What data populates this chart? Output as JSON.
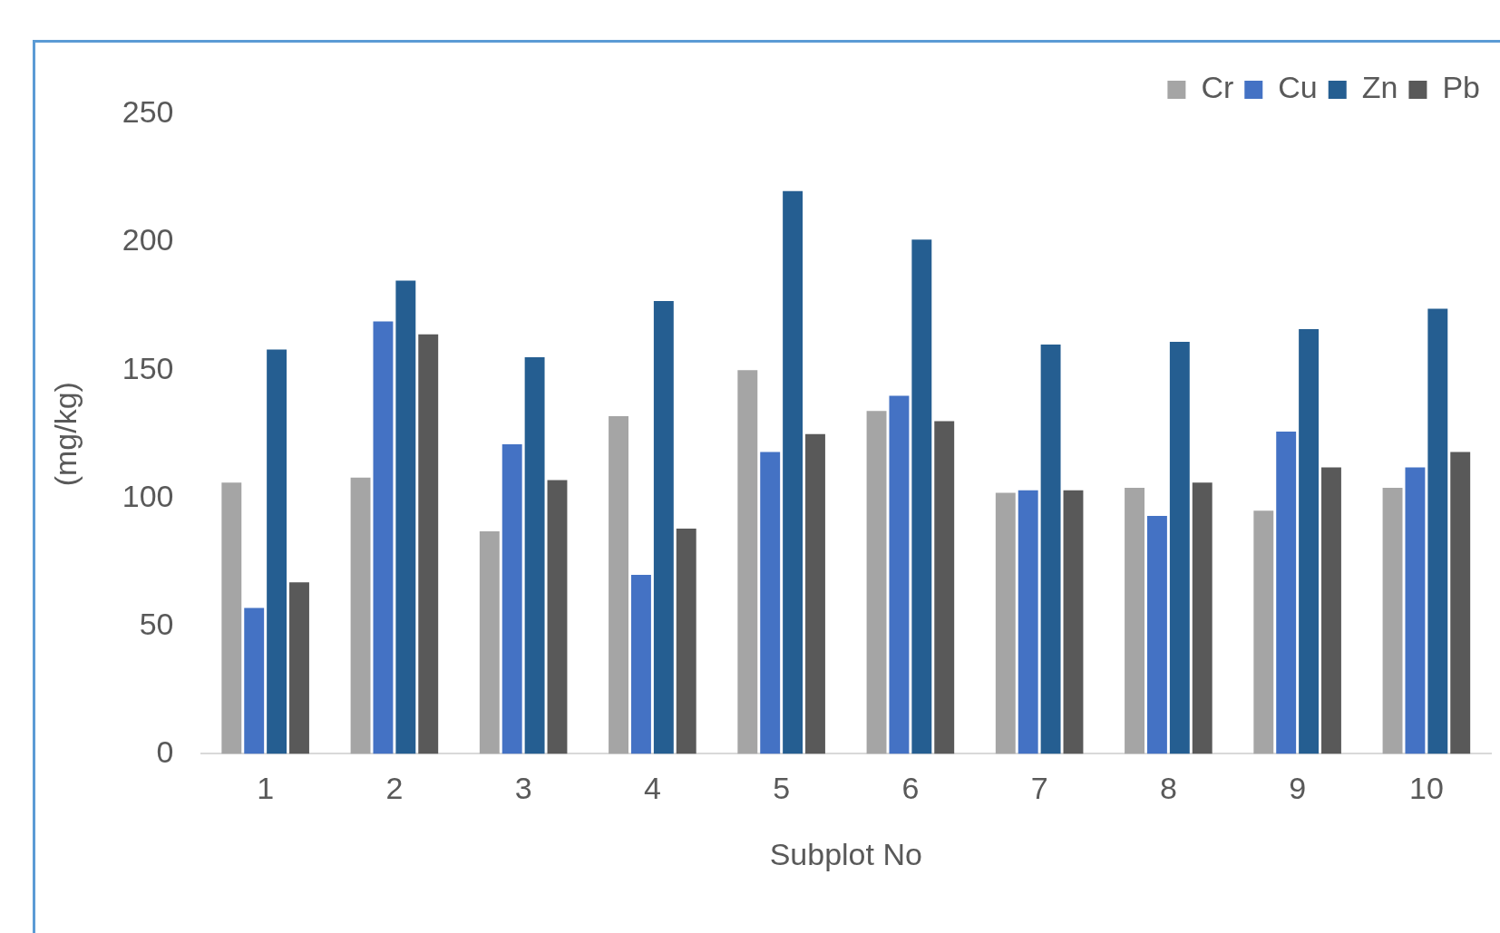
{
  "chart_data": {
    "type": "bar",
    "xlabel": "Subplot No",
    "ylabel": "(mg/kg)",
    "categories": [
      "1",
      "2",
      "3",
      "4",
      "5",
      "6",
      "7",
      "8",
      "9",
      "10"
    ],
    "series": [
      {
        "name": "Cr",
        "color": "#a5a5a5",
        "values": [
          106,
          108,
          87,
          132,
          150,
          134,
          102,
          104,
          95,
          104
        ]
      },
      {
        "name": "Cu",
        "color": "#4472c4",
        "values": [
          57,
          169,
          121,
          70,
          118,
          140,
          103,
          93,
          126,
          112
        ]
      },
      {
        "name": "Zn",
        "color": "#255e91",
        "values": [
          158,
          185,
          155,
          177,
          220,
          201,
          160,
          161,
          166,
          174
        ]
      },
      {
        "name": "Pb",
        "color": "#595959",
        "values": [
          67,
          164,
          107,
          88,
          125,
          130,
          103,
          106,
          112,
          118
        ]
      }
    ],
    "ylim": [
      0,
      250
    ],
    "yticks": [
      0,
      50,
      100,
      150,
      200,
      250
    ],
    "grid": false,
    "legend": "top right"
  }
}
